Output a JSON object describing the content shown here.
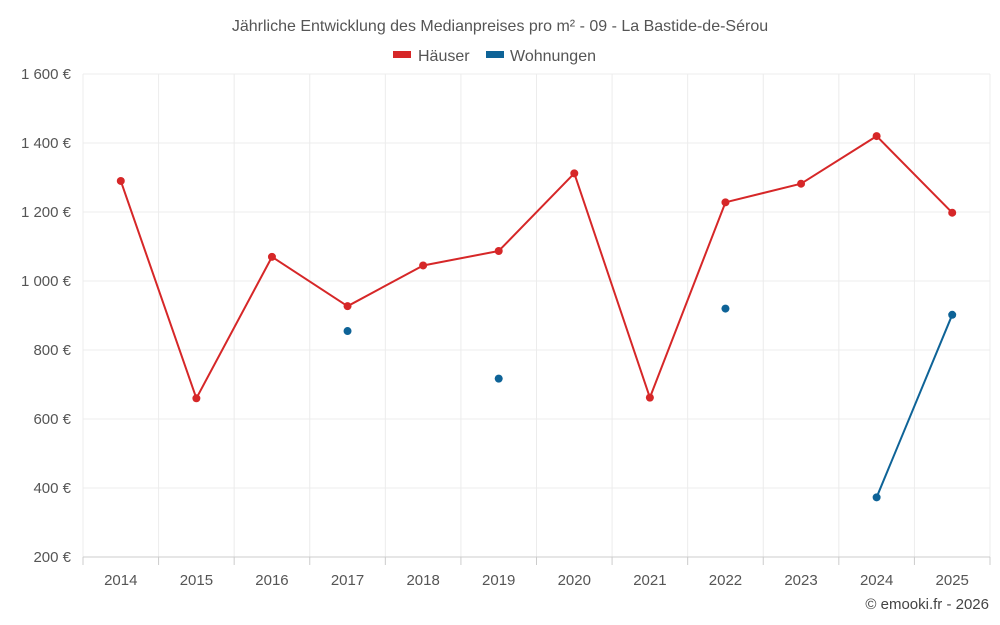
{
  "chart_data": {
    "type": "line",
    "title": "Jährliche Entwicklung des Medianpreises pro m² - 09 - La Bastide-de-Sérou",
    "categories": [
      "2014",
      "2015",
      "2016",
      "2017",
      "2018",
      "2019",
      "2020",
      "2021",
      "2022",
      "2023",
      "2024",
      "2025"
    ],
    "series": [
      {
        "name": "Häuser",
        "color": "#d62728",
        "values": [
          1290,
          660,
          1070,
          927,
          1045,
          1087,
          1312,
          662,
          1228,
          1282,
          1420,
          1198
        ]
      },
      {
        "name": "Wohnungen",
        "color": "#0e6397",
        "values": [
          null,
          null,
          null,
          855,
          null,
          717,
          null,
          null,
          920,
          null,
          373,
          902
        ]
      }
    ],
    "y_ticks": [
      200,
      400,
      600,
      800,
      1000,
      1200,
      1400,
      1600
    ],
    "y_tick_labels": [
      "200 €",
      "400 €",
      "600 €",
      "800 €",
      "1 000 €",
      "1 200 €",
      "1 400 €",
      "1 600 €"
    ],
    "ylim": [
      200,
      1600
    ],
    "xlabel": "",
    "ylabel": "",
    "legend_position": "top-center",
    "grid": true,
    "credit": "© emooki.fr - 2026"
  }
}
